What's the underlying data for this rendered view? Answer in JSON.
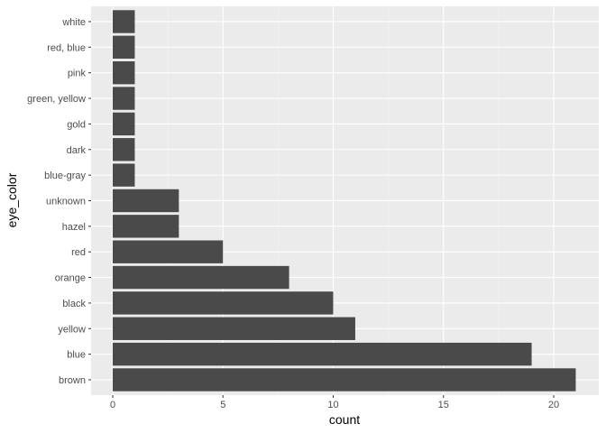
{
  "chart_data": {
    "type": "bar",
    "orientation": "horizontal",
    "xlabel": "count",
    "ylabel": "eye_color",
    "categories": [
      "brown",
      "blue",
      "yellow",
      "black",
      "orange",
      "red",
      "hazel",
      "unknown",
      "blue-gray",
      "dark",
      "gold",
      "green, yellow",
      "pink",
      "red, blue",
      "white"
    ],
    "values": [
      21,
      19,
      11,
      10,
      8,
      5,
      3,
      3,
      1,
      1,
      1,
      1,
      1,
      1,
      1
    ],
    "xticks": [
      0,
      5,
      10,
      15,
      20
    ],
    "xlim": [
      0,
      22
    ],
    "grid": true,
    "colors": {
      "bar": "#4a4a4a",
      "panel": "#ebebeb",
      "grid": "#ffffff"
    }
  }
}
